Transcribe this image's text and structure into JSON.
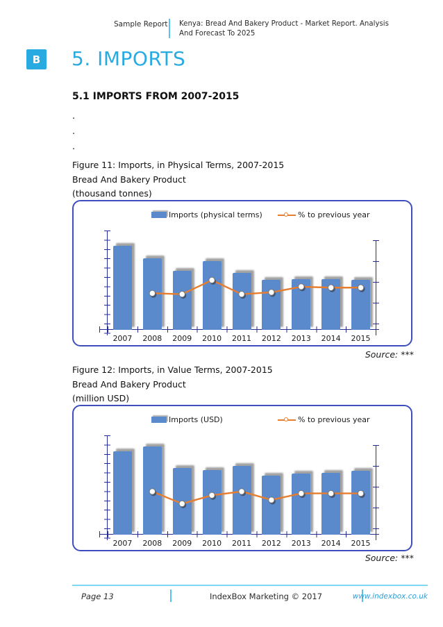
{
  "header": {
    "doc_type": "Sample Report",
    "title": "Kenya: Bread And Bakery Product - Market Report. Analysis And Forecast To 2025"
  },
  "section": {
    "logo_letter": "B",
    "title": "5. IMPORTS",
    "heading": "5.1 IMPORTS FROM 2007-2015",
    "placeholder_lines": [
      ".",
      ".",
      "."
    ]
  },
  "colors": {
    "brand_blue": "#29abe2",
    "bar_blue": "#5a89cc",
    "line_orange": "#e87d2e",
    "axis_navy": "#252a96",
    "chart_border": "#3e4dbe",
    "divider_blue": "#56c5ef",
    "link_blue": "#2d9fd9"
  },
  "chart_data": [
    {
      "type": "bar",
      "combo": "bar+line",
      "title": "Figure 11: Imports, in Physical Terms, 2007-2015",
      "subtitle": "Bread And Bakery Product",
      "units": "(thousand tonnes)",
      "source": "Source: ***",
      "categories": [
        "2007",
        "2008",
        "2009",
        "2010",
        "2011",
        "2012",
        "2013",
        "2014",
        "2015"
      ],
      "y_axis_tick_labels": "hidden in sample report (ticks only)",
      "legend_position": "top",
      "series": [
        {
          "name": "Imports (physical terms)",
          "type": "bar",
          "color": "#5a89cc",
          "values_pct": [
            90,
            76,
            63,
            73,
            61,
            53,
            54,
            54,
            53
          ]
        },
        {
          "name": "% to previous year",
          "type": "line",
          "color": "#e87d2e",
          "values_pct": [
            null,
            39,
            38,
            53,
            38,
            40,
            46,
            45,
            45
          ]
        }
      ]
    },
    {
      "type": "bar",
      "combo": "bar+line",
      "title": "Figure 12: Imports, in Value Terms, 2007-2015",
      "subtitle": "Bread And Bakery Product",
      "units": "(million USD)",
      "source": "Source: ***",
      "categories": [
        "2007",
        "2008",
        "2009",
        "2010",
        "2011",
        "2012",
        "2013",
        "2014",
        "2015"
      ],
      "y_axis_tick_labels": "hidden in sample report (ticks only)",
      "legend_position": "top",
      "series": [
        {
          "name": "Imports (USD)",
          "type": "bar",
          "color": "#5a89cc",
          "values_pct": [
            89,
            94,
            71,
            69,
            73,
            63,
            65,
            66,
            68
          ]
        },
        {
          "name": "% to previous year",
          "type": "line",
          "color": "#e87d2e",
          "values_pct": [
            null,
            46,
            33,
            42,
            46,
            37,
            44,
            44,
            44
          ]
        }
      ]
    }
  ],
  "footer": {
    "page": "Page 13",
    "copyright": "IndexBox Marketing © 2017",
    "website": "www.indexbox.co.uk"
  }
}
